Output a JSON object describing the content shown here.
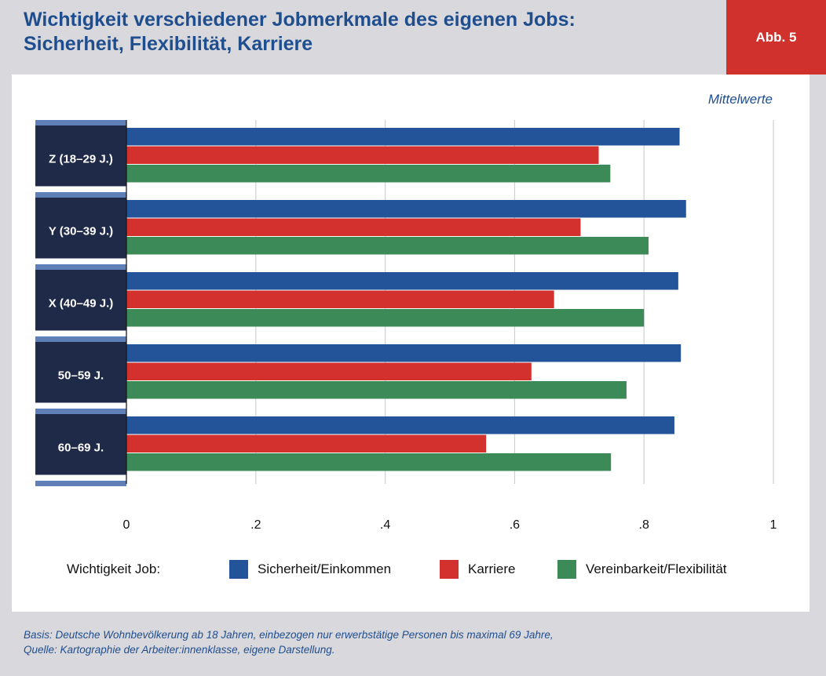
{
  "header": {
    "title_line1": "Wichtigkeit verschiedener Jobmerkmale des eigenen Jobs:",
    "title_line2": "Sicherheit, Flexibilität, Karriere",
    "badge": "Abb. 5"
  },
  "chart_data": {
    "type": "bar",
    "orientation": "horizontal",
    "unit_note": "Mittelwerte",
    "categories": [
      "Z (18–29 J.)",
      "Y (30–39 J.)",
      "X (40–49 J.)",
      "50–59 J.",
      "60–69 J."
    ],
    "series": [
      {
        "name": "Sicherheit/Einkommen",
        "color": "#23549a",
        "values": [
          0.855,
          0.865,
          0.853,
          0.857,
          0.847
        ]
      },
      {
        "name": "Karriere",
        "color": "#d3312d",
        "values": [
          0.73,
          0.702,
          0.661,
          0.626,
          0.556
        ]
      },
      {
        "name": "Vereinbarkeit/Flexibilität",
        "color": "#3b8a58",
        "values": [
          0.748,
          0.807,
          0.8,
          0.773,
          0.749
        ]
      }
    ],
    "xlim": [
      0,
      1
    ],
    "xticks": [
      0,
      0.2,
      0.4,
      0.6,
      0.8,
      1
    ],
    "xtick_labels": [
      "0",
      ".2",
      ".4",
      ".6",
      ".8",
      "1"
    ],
    "grid": true,
    "legend_title": "Wichtigkeit Job:",
    "legend_position": "bottom"
  },
  "footnote": {
    "line1": "Basis: Deutsche Wohnbevölkerung ab 18 Jahren, einbezogen nur erwerbstätige Personen bis maximal 69 Jahre,",
    "line2": "Quelle: Kartographie der Arbeiter:innenklasse, eigene Darstellung."
  }
}
